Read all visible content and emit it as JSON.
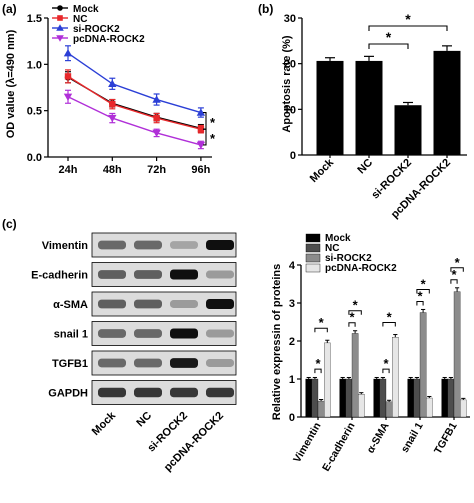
{
  "panels": {
    "a": "(a)",
    "b": "(b)",
    "c": "(c)"
  },
  "chart_data": [
    {
      "type": "line",
      "panel": "(a)",
      "xlabel": "",
      "ylabel": "OD value (λ=490 nm)",
      "x": [
        "24h",
        "48h",
        "72h",
        "96h"
      ],
      "ylim": [
        0.0,
        1.5
      ],
      "yticks": [
        "0.0",
        "0.5",
        "1.0",
        "1.5"
      ],
      "series": [
        {
          "name": "Mock",
          "values": [
            0.86,
            0.58,
            0.43,
            0.31
          ],
          "errors": [
            0.06,
            0.04,
            0.04,
            0.04
          ],
          "color": "#000000",
          "marker": "circle"
        },
        {
          "name": "NC",
          "values": [
            0.87,
            0.57,
            0.42,
            0.3
          ],
          "errors": [
            0.07,
            0.05,
            0.05,
            0.04
          ],
          "color": "#e8282b",
          "marker": "square"
        },
        {
          "name": "si-ROCK2",
          "values": [
            1.12,
            0.79,
            0.62,
            0.48
          ],
          "errors": [
            0.08,
            0.06,
            0.06,
            0.05
          ],
          "color": "#2b3fd6",
          "marker": "triangle-up"
        },
        {
          "name": "pcDNA-ROCK2",
          "values": [
            0.65,
            0.42,
            0.26,
            0.13
          ],
          "errors": [
            0.07,
            0.05,
            0.04,
            0.04
          ],
          "color": "#b02fd8",
          "marker": "triangle-down"
        }
      ],
      "annotations": [
        "*",
        "*"
      ]
    },
    {
      "type": "bar",
      "panel": "(b)",
      "categories": [
        "Mock",
        "NC",
        "si-ROCK2",
        "pcDNA-ROCK2"
      ],
      "values": [
        20.6,
        20.6,
        10.9,
        22.8
      ],
      "errors": [
        0.7,
        1.0,
        0.6,
        1.1
      ],
      "ylabel": "Apoptosis rate (%)",
      "ylim": [
        0,
        30
      ],
      "yticks": [
        "0",
        "10",
        "20",
        "30"
      ],
      "annotations": [
        "*",
        "*"
      ]
    },
    {
      "type": "bar",
      "panel": "(c)",
      "categories": [
        "Vimentin",
        "E-cadherin",
        "α-SMA",
        "snail 1",
        "TGFB1"
      ],
      "ylabel": "Relative expressin of proteins",
      "ylim": [
        0,
        4
      ],
      "yticks": [
        "0",
        "1",
        "2",
        "3",
        "4"
      ],
      "series": [
        {
          "name": "Mock",
          "values": [
            1.0,
            1.0,
            1.0,
            1.0,
            1.0
          ],
          "errors": [
            0.04,
            0.04,
            0.04,
            0.04,
            0.04
          ],
          "color": "#000000"
        },
        {
          "name": "NC",
          "values": [
            1.0,
            1.0,
            1.0,
            1.0,
            1.0
          ],
          "errors": [
            0.04,
            0.04,
            0.04,
            0.04,
            0.04
          ],
          "color": "#4d4d4d"
        },
        {
          "name": "si-ROCK2",
          "values": [
            0.42,
            2.2,
            0.4,
            2.75,
            3.3
          ],
          "errors": [
            0.04,
            0.07,
            0.04,
            0.08,
            0.1
          ],
          "color": "#8c8c8c"
        },
        {
          "name": "pcDNA-ROCK2",
          "values": [
            1.95,
            0.6,
            2.1,
            0.5,
            0.45
          ],
          "errors": [
            0.07,
            0.04,
            0.07,
            0.04,
            0.04
          ],
          "color": "#e6e6e6"
        }
      ],
      "annotations": [
        "*",
        "*",
        "*",
        "*",
        "*",
        "*",
        "*",
        "*",
        "*",
        "*"
      ]
    }
  ],
  "blot": {
    "rows": [
      "Vimentin",
      "E-cadherin",
      "α-SMA",
      "snail 1",
      "TGFB1",
      "GAPDH"
    ],
    "lanes": [
      "Mock",
      "NC",
      "si-ROCK2",
      "pcDNA-ROCK2"
    ],
    "intensities": [
      [
        0.55,
        0.55,
        0.25,
        1.0
      ],
      [
        0.6,
        0.6,
        1.0,
        0.3
      ],
      [
        0.6,
        0.6,
        0.3,
        1.0
      ],
      [
        0.55,
        0.55,
        1.0,
        0.3
      ],
      [
        0.55,
        0.55,
        0.95,
        0.3
      ],
      [
        0.8,
        0.8,
        0.8,
        0.8
      ]
    ]
  }
}
